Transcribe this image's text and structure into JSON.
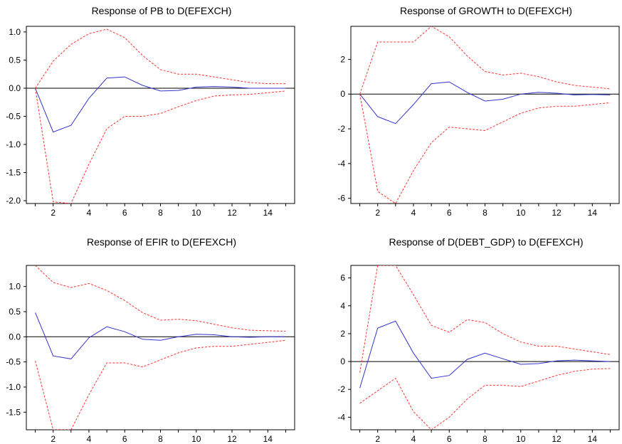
{
  "chart_data": [
    {
      "type": "line",
      "title": "Response of PB to D(EFEXCH)",
      "x": [
        1,
        2,
        3,
        4,
        5,
        6,
        7,
        8,
        9,
        10,
        11,
        12,
        13,
        14,
        15
      ],
      "x_ticks": [
        2,
        4,
        6,
        8,
        10,
        12,
        14
      ],
      "xlim": [
        0.5,
        15.5
      ],
      "ylim": [
        -2.05,
        1.1
      ],
      "y_ticks": [
        1.0,
        0.5,
        0.0,
        -0.5,
        -1.0,
        -1.5,
        -2.0
      ],
      "y_tick_labels": [
        "1.0",
        "0.5",
        "0.0",
        "-0.5",
        "-1.0",
        "-1.5",
        "-2.0"
      ],
      "zero_line": true,
      "series": [
        {
          "role": "response",
          "color": "#3333cc",
          "dashed": false,
          "values": [
            0.0,
            -0.78,
            -0.66,
            -0.18,
            0.18,
            0.2,
            0.05,
            -0.05,
            -0.04,
            0.02,
            0.03,
            0.02,
            0.0,
            0.0,
            0.0
          ]
        },
        {
          "role": "upper band",
          "color": "#ff3333",
          "dashed": true,
          "values": [
            0.0,
            0.48,
            0.78,
            0.97,
            1.05,
            0.9,
            0.58,
            0.33,
            0.25,
            0.25,
            0.2,
            0.15,
            0.1,
            0.08,
            0.08
          ]
        },
        {
          "role": "lower band",
          "color": "#ff3333",
          "dashed": true,
          "values": [
            0.0,
            -2.02,
            -2.05,
            -1.35,
            -0.72,
            -0.5,
            -0.5,
            -0.45,
            -0.33,
            -0.22,
            -0.14,
            -0.12,
            -0.11,
            -0.08,
            -0.05
          ]
        }
      ]
    },
    {
      "type": "line",
      "title": "Response of GROWTH to D(EFEXCH)",
      "x": [
        1,
        2,
        3,
        4,
        5,
        6,
        7,
        8,
        9,
        10,
        11,
        12,
        13,
        14,
        15
      ],
      "x_ticks": [
        2,
        4,
        6,
        8,
        10,
        12,
        14
      ],
      "xlim": [
        0.5,
        15.5
      ],
      "ylim": [
        -6.3,
        3.9
      ],
      "y_ticks": [
        2,
        0,
        -2,
        -4,
        -6
      ],
      "y_tick_labels": [
        "2",
        "0",
        "-2",
        "-4",
        "-6"
      ],
      "zero_line": true,
      "series": [
        {
          "role": "response",
          "color": "#3333cc",
          "dashed": false,
          "values": [
            0.0,
            -1.3,
            -1.7,
            -0.6,
            0.6,
            0.7,
            0.1,
            -0.4,
            -0.3,
            0.0,
            0.1,
            0.05,
            -0.05,
            -0.02,
            -0.05
          ]
        },
        {
          "role": "upper band",
          "color": "#ff3333",
          "dashed": true,
          "values": [
            0.0,
            3.0,
            3.0,
            3.0,
            3.9,
            3.3,
            2.2,
            1.3,
            1.1,
            1.2,
            1.0,
            0.7,
            0.5,
            0.4,
            0.3
          ]
        },
        {
          "role": "lower band",
          "color": "#ff3333",
          "dashed": true,
          "values": [
            0.0,
            -5.6,
            -6.3,
            -4.4,
            -2.8,
            -1.9,
            -2.0,
            -2.1,
            -1.6,
            -1.1,
            -0.8,
            -0.7,
            -0.7,
            -0.6,
            -0.5
          ]
        }
      ]
    },
    {
      "type": "line",
      "title": "Response of EFIR to D(EFEXCH)",
      "x": [
        1,
        2,
        3,
        4,
        5,
        6,
        7,
        8,
        9,
        10,
        11,
        12,
        13,
        14,
        15
      ],
      "x_ticks": [
        2,
        4,
        6,
        8,
        10,
        12,
        14
      ],
      "xlim": [
        0.5,
        15.5
      ],
      "ylim": [
        -1.85,
        1.42
      ],
      "y_ticks": [
        1.0,
        0.5,
        0.0,
        -0.5,
        -1.0,
        -1.5
      ],
      "y_tick_labels": [
        "1.0",
        "0.5",
        "0.0",
        "-0.5",
        "-1.0",
        "-1.5"
      ],
      "zero_line": true,
      "series": [
        {
          "role": "response",
          "color": "#3333cc",
          "dashed": false,
          "values": [
            0.48,
            -0.38,
            -0.44,
            -0.02,
            0.2,
            0.1,
            -0.05,
            -0.07,
            0.0,
            0.05,
            0.04,
            0.0,
            -0.01,
            0.0,
            0.0
          ]
        },
        {
          "role": "upper band",
          "color": "#ff3333",
          "dashed": true,
          "values": [
            1.42,
            1.08,
            0.98,
            1.06,
            0.92,
            0.72,
            0.48,
            0.33,
            0.35,
            0.32,
            0.25,
            0.18,
            0.13,
            0.12,
            0.11
          ]
        },
        {
          "role": "lower band",
          "color": "#ff3333",
          "dashed": true,
          "values": [
            -0.48,
            -1.85,
            -1.85,
            -1.15,
            -0.52,
            -0.52,
            -0.6,
            -0.46,
            -0.32,
            -0.22,
            -0.19,
            -0.19,
            -0.15,
            -0.11,
            -0.07
          ]
        }
      ]
    },
    {
      "type": "line",
      "title": "Response of D(DEBT_GDP) to D(EFEXCH)",
      "x": [
        1,
        2,
        3,
        4,
        5,
        6,
        7,
        8,
        9,
        10,
        11,
        12,
        13,
        14,
        15
      ],
      "x_ticks": [
        2,
        4,
        6,
        8,
        10,
        12,
        14
      ],
      "xlim": [
        0.5,
        15.5
      ],
      "ylim": [
        -4.9,
        6.9
      ],
      "y_ticks": [
        6,
        4,
        2,
        0,
        -2,
        -4
      ],
      "y_tick_labels": [
        "6",
        "4",
        "2",
        "0",
        "-2",
        "-4"
      ],
      "zero_line": true,
      "series": [
        {
          "role": "response",
          "color": "#3333cc",
          "dashed": false,
          "values": [
            -1.9,
            2.4,
            2.9,
            0.6,
            -1.2,
            -1.0,
            0.15,
            0.6,
            0.2,
            -0.2,
            -0.15,
            0.05,
            0.1,
            0.05,
            0.0
          ]
        },
        {
          "role": "upper band",
          "color": "#ff3333",
          "dashed": true,
          "values": [
            -0.8,
            6.9,
            6.9,
            4.8,
            2.6,
            2.1,
            3.0,
            2.8,
            2.0,
            1.4,
            1.1,
            1.1,
            0.9,
            0.7,
            0.5
          ]
        },
        {
          "role": "lower band",
          "color": "#ff3333",
          "dashed": true,
          "values": [
            -3.0,
            -2.1,
            -1.2,
            -3.6,
            -4.9,
            -4.0,
            -2.7,
            -1.7,
            -1.7,
            -1.8,
            -1.4,
            -1.0,
            -0.7,
            -0.55,
            -0.5
          ]
        }
      ]
    }
  ]
}
